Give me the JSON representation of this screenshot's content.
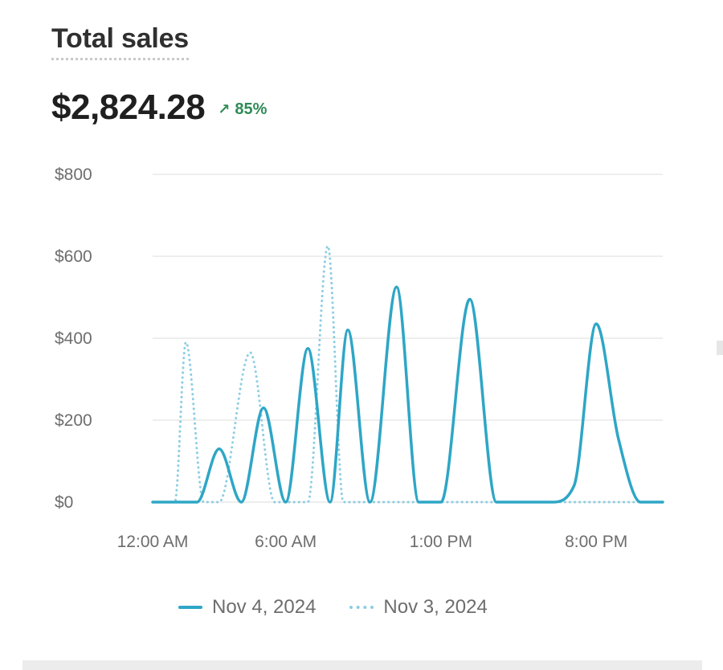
{
  "header": {
    "title": "Total sales",
    "amount": "$2,824.28",
    "change": "85%",
    "change_icon": "arrow-up-right-icon",
    "change_color": "#2e8b57"
  },
  "chart_data": {
    "type": "line",
    "ylim": [
      0,
      800
    ],
    "y_ticks": [
      "$800",
      "$600",
      "$400",
      "$200",
      "$0"
    ],
    "y_tick_values": [
      800,
      600,
      400,
      200,
      0
    ],
    "x_tick_labels": [
      "12:00 AM",
      "6:00 AM",
      "1:00 PM",
      "8:00 PM"
    ],
    "x_tick_hours": [
      0,
      6,
      13,
      20
    ],
    "x_range_hours": [
      0,
      23
    ],
    "grid": true,
    "legend_position": "bottom",
    "series": [
      {
        "name": "Nov 4, 2024",
        "style": "solid",
        "color": "#2ea6c6",
        "points": [
          [
            0,
            0
          ],
          [
            1,
            0
          ],
          [
            2,
            0
          ],
          [
            3,
            130
          ],
          [
            4,
            0
          ],
          [
            5,
            230
          ],
          [
            6,
            0
          ],
          [
            7,
            375
          ],
          [
            8,
            0
          ],
          [
            8.8,
            420
          ],
          [
            9.8,
            0
          ],
          [
            11,
            525
          ],
          [
            12,
            0
          ],
          [
            13,
            0
          ],
          [
            14.3,
            495
          ],
          [
            15.5,
            0
          ],
          [
            16,
            0
          ],
          [
            17,
            0
          ],
          [
            18,
            0
          ],
          [
            19,
            40
          ],
          [
            20,
            435
          ],
          [
            21,
            155
          ],
          [
            22,
            0
          ],
          [
            23,
            0
          ]
        ]
      },
      {
        "name": "Nov 3, 2024",
        "style": "dotted",
        "color": "#8ccde2",
        "points": [
          [
            0,
            0
          ],
          [
            1,
            0
          ],
          [
            1.5,
            390
          ],
          [
            2.3,
            0
          ],
          [
            3,
            0
          ],
          [
            4.4,
            365
          ],
          [
            5.5,
            0
          ],
          [
            6,
            0
          ],
          [
            7,
            0
          ],
          [
            7.9,
            625
          ],
          [
            8.6,
            0
          ],
          [
            9,
            0
          ],
          [
            11,
            0
          ],
          [
            13,
            0
          ],
          [
            15,
            0
          ],
          [
            17,
            0
          ],
          [
            19,
            0
          ],
          [
            20,
            0
          ],
          [
            21,
            0
          ],
          [
            22,
            0
          ],
          [
            23,
            0
          ]
        ]
      }
    ]
  }
}
